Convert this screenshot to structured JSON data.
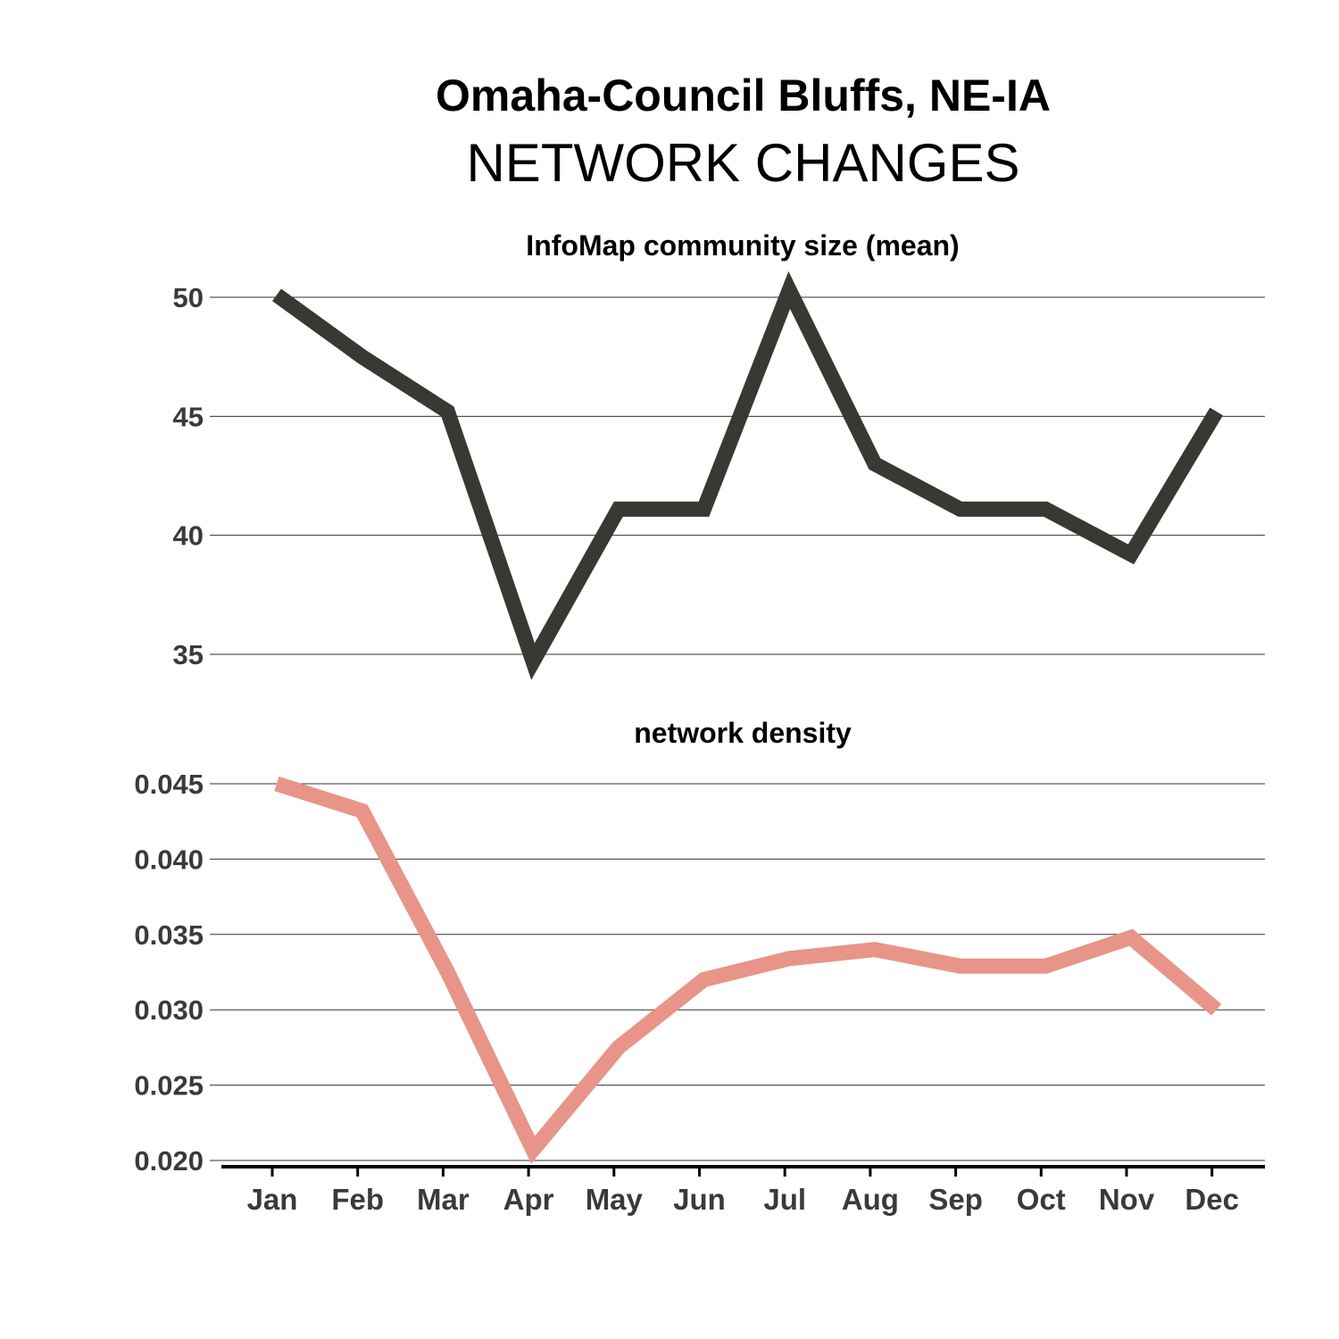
{
  "title": "Omaha-Council Bluffs, NE-IA",
  "subtitle": "NETWORK CHANGES",
  "chart_data": [
    {
      "type": "line",
      "title": "InfoMap community size (mean)",
      "categories": [
        "Jan",
        "Feb",
        "Mar",
        "Apr",
        "May",
        "Jun",
        "Jul",
        "Aug",
        "Sep",
        "Oct",
        "Nov",
        "Dec"
      ],
      "values": [
        50.1,
        47.5,
        45.2,
        34.7,
        41.1,
        41.1,
        50.3,
        43.0,
        41.1,
        41.1,
        39.2,
        45.2
      ],
      "yticks": [
        35,
        40,
        45,
        50
      ],
      "ylim": [
        33.9,
        51.6
      ],
      "color": "#3a3832",
      "grid": true
    },
    {
      "type": "line",
      "title": "network density",
      "categories": [
        "Jan",
        "Feb",
        "Mar",
        "Apr",
        "May",
        "Jun",
        "Jul",
        "Aug",
        "Sep",
        "Oct",
        "Nov",
        "Dec"
      ],
      "values": [
        0.045,
        0.0432,
        0.0325,
        0.0207,
        0.0275,
        0.032,
        0.0334,
        0.034,
        0.0329,
        0.0329,
        0.0348,
        0.03
      ],
      "yticks": [
        0.02,
        0.025,
        0.03,
        0.035,
        0.04,
        0.045
      ],
      "ytick_labels": [
        "0.020",
        "0.025",
        "0.030",
        "0.035",
        "0.040",
        "0.045"
      ],
      "ylim": [
        0.0197,
        0.0467
      ],
      "color": "#e89488",
      "grid": true
    }
  ]
}
